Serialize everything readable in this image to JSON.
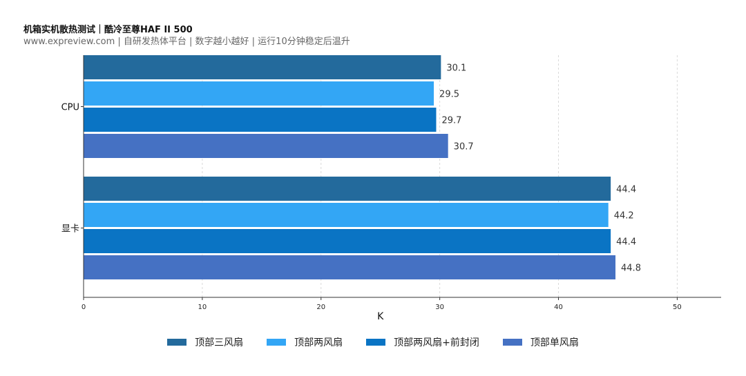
{
  "header": {
    "title": "机箱实机散热测试｜酷冷至尊HAF II 500",
    "subtitle": "www.expreview.com | 自研发热体平台 | 数字越小越好 | 运行10分钟稳定后温升"
  },
  "chart_data": {
    "type": "bar",
    "orientation": "horizontal",
    "categories": [
      "CPU",
      "显卡"
    ],
    "series": [
      {
        "name": "顶部三风扇",
        "color": "#236a9c",
        "values": [
          30.1,
          44.4
        ]
      },
      {
        "name": "顶部两风扇",
        "color": "#33a6f5",
        "values": [
          29.5,
          44.2
        ]
      },
      {
        "name": "顶部两风扇+前封闭",
        "color": "#0a74c4",
        "values": [
          29.7,
          44.4
        ]
      },
      {
        "name": "顶部单风扇",
        "color": "#4571c3",
        "values": [
          30.7,
          44.8
        ]
      }
    ],
    "xlabel": "K",
    "xlim": [
      0,
      53.7
    ],
    "xticks": [
      "0",
      "10",
      "20",
      "30",
      "40",
      "50"
    ],
    "grid": "vertical-dashed",
    "legend_position": "bottom-center"
  }
}
